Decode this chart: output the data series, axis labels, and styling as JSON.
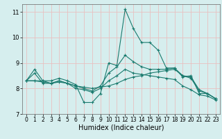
{
  "title": "",
  "xlabel": "Humidex (Indice chaleur)",
  "xlim": [
    -0.5,
    23.5
  ],
  "ylim": [
    7,
    11.3
  ],
  "yticks": [
    7,
    8,
    9,
    10,
    11
  ],
  "xticks": [
    0,
    1,
    2,
    3,
    4,
    5,
    6,
    7,
    8,
    9,
    10,
    11,
    12,
    13,
    14,
    15,
    16,
    17,
    18,
    19,
    20,
    21,
    22,
    23
  ],
  "bg_color": "#d6eeee",
  "grid_color": "#e8c0c0",
  "line_color": "#1a7a6e",
  "lines": [
    {
      "x": [
        0,
        1,
        2,
        3,
        4,
        5,
        6,
        7,
        8,
        9,
        10,
        11,
        12,
        13,
        14,
        15,
        16,
        17,
        18,
        19,
        20,
        21,
        22,
        23
      ],
      "y": [
        8.3,
        8.75,
        8.3,
        8.3,
        8.4,
        8.3,
        8.15,
        7.45,
        7.45,
        7.8,
        9.0,
        8.9,
        11.1,
        10.35,
        9.8,
        9.8,
        9.5,
        8.8,
        8.8,
        8.45,
        8.5,
        7.8,
        7.8,
        7.6
      ]
    },
    {
      "x": [
        0,
        1,
        2,
        3,
        4,
        5,
        6,
        7,
        8,
        9,
        10,
        11,
        12,
        13,
        14,
        15,
        16,
        17,
        18,
        19,
        20,
        21,
        22,
        23
      ],
      "y": [
        8.3,
        8.3,
        8.25,
        8.2,
        8.25,
        8.2,
        8.1,
        8.05,
        8.0,
        8.05,
        8.1,
        8.2,
        8.35,
        8.45,
        8.5,
        8.6,
        8.65,
        8.7,
        8.75,
        8.5,
        8.45,
        7.95,
        7.8,
        7.6
      ]
    },
    {
      "x": [
        0,
        1,
        2,
        3,
        4,
        5,
        6,
        7,
        8,
        9,
        10,
        11,
        12,
        13,
        14,
        15,
        16,
        17,
        18,
        19,
        20,
        21,
        22,
        23
      ],
      "y": [
        8.3,
        8.6,
        8.2,
        8.2,
        8.3,
        8.2,
        8.1,
        8.0,
        7.9,
        8.1,
        8.6,
        8.85,
        9.3,
        9.05,
        8.85,
        8.75,
        8.75,
        8.75,
        8.8,
        8.5,
        8.4,
        7.9,
        7.8,
        7.6
      ]
    },
    {
      "x": [
        0,
        1,
        2,
        3,
        4,
        5,
        6,
        7,
        8,
        9,
        10,
        11,
        12,
        13,
        14,
        15,
        16,
        17,
        18,
        19,
        20,
        21,
        22,
        23
      ],
      "y": [
        8.3,
        8.3,
        8.3,
        8.2,
        8.3,
        8.2,
        8.0,
        7.95,
        7.85,
        8.0,
        8.3,
        8.5,
        8.75,
        8.6,
        8.55,
        8.5,
        8.45,
        8.4,
        8.35,
        8.1,
        7.95,
        7.75,
        7.7,
        7.55
      ]
    }
  ]
}
